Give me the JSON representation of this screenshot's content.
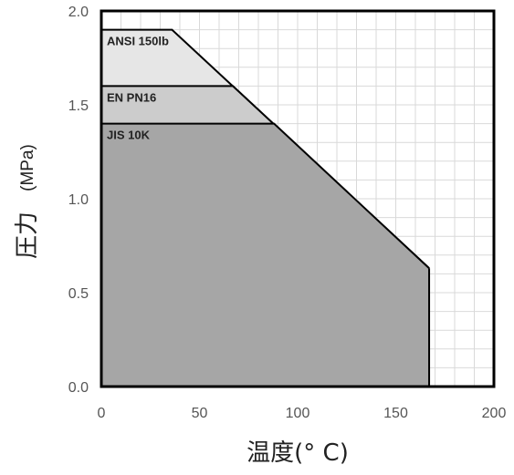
{
  "chart_data": {
    "type": "area",
    "xlabel": "温度(° C)",
    "ylabel_main": "圧力",
    "ylabel_unit": "(MPa)",
    "xlim": [
      0,
      200
    ],
    "ylim": [
      0,
      2.0
    ],
    "x_ticks": [
      0,
      50,
      100,
      150,
      200
    ],
    "y_ticks": [
      0.0,
      0.5,
      1.0,
      1.5,
      2.0
    ],
    "x_tick_labels": [
      "0",
      "50",
      "100",
      "150",
      "200"
    ],
    "y_tick_labels": [
      "0.0",
      "0.5",
      "1.0",
      "1.5",
      "2.0"
    ],
    "grid": true,
    "series": [
      {
        "name": "ANSI 150lb",
        "color": "#e6e6e6",
        "points": [
          [
            0,
            1.9
          ],
          [
            36,
            1.9
          ],
          [
            167,
            0.63
          ]
        ]
      },
      {
        "name": "EN PN16",
        "color": "#cccccc",
        "points": [
          [
            0,
            1.6
          ],
          [
            67,
            1.6
          ],
          [
            167,
            0.63
          ]
        ]
      },
      {
        "name": "JIS 10K",
        "color": "#a6a6a6",
        "points": [
          [
            0,
            1.4
          ],
          [
            88,
            1.4
          ],
          [
            167,
            0.63
          ]
        ]
      }
    ],
    "x_end": 167
  }
}
